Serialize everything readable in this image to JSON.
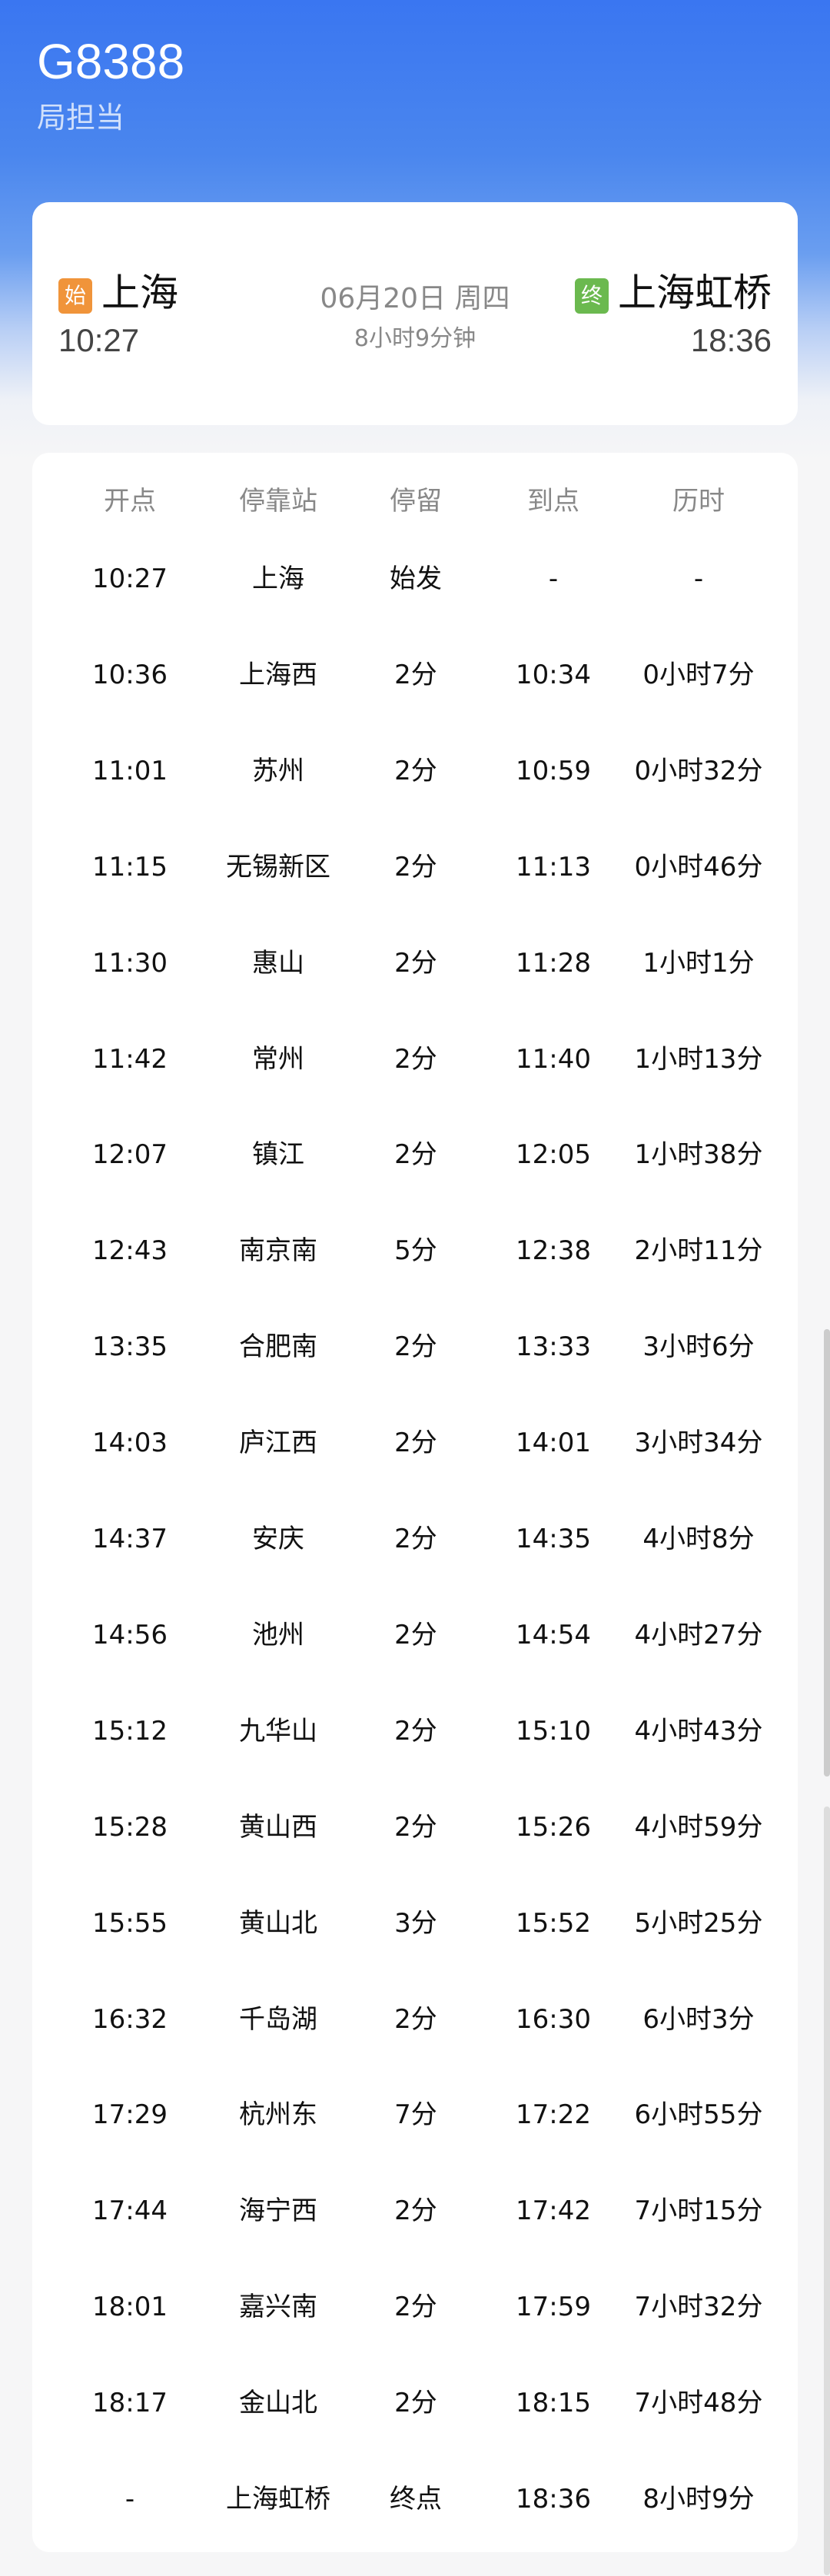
{
  "header": {
    "train_no": "G8388",
    "subtitle": "局担当"
  },
  "summary": {
    "from": {
      "badge": "始",
      "station": "上海",
      "time": "10:27",
      "badge_color": "#f0943a"
    },
    "to": {
      "badge": "终",
      "station": "上海虹桥",
      "time": "18:36",
      "badge_color": "#6bb94f"
    },
    "date": "06月20日  周四",
    "duration": "8小时9分钟"
  },
  "table": {
    "columns": [
      "开点",
      "停靠站",
      "停留",
      "到点",
      "历时"
    ],
    "rows": [
      [
        "10:27",
        "上海",
        "始发",
        "-",
        "-"
      ],
      [
        "10:36",
        "上海西",
        "2分",
        "10:34",
        "0小时7分"
      ],
      [
        "11:01",
        "苏州",
        "2分",
        "10:59",
        "0小时32分"
      ],
      [
        "11:15",
        "无锡新区",
        "2分",
        "11:13",
        "0小时46分"
      ],
      [
        "11:30",
        "惠山",
        "2分",
        "11:28",
        "1小时1分"
      ],
      [
        "11:42",
        "常州",
        "2分",
        "11:40",
        "1小时13分"
      ],
      [
        "12:07",
        "镇江",
        "2分",
        "12:05",
        "1小时38分"
      ],
      [
        "12:43",
        "南京南",
        "5分",
        "12:38",
        "2小时11分"
      ],
      [
        "13:35",
        "合肥南",
        "2分",
        "13:33",
        "3小时6分"
      ],
      [
        "14:03",
        "庐江西",
        "2分",
        "14:01",
        "3小时34分"
      ],
      [
        "14:37",
        "安庆",
        "2分",
        "14:35",
        "4小时8分"
      ],
      [
        "14:56",
        "池州",
        "2分",
        "14:54",
        "4小时27分"
      ],
      [
        "15:12",
        "九华山",
        "2分",
        "15:10",
        "4小时43分"
      ],
      [
        "15:28",
        "黄山西",
        "2分",
        "15:26",
        "4小时59分"
      ],
      [
        "15:55",
        "黄山北",
        "3分",
        "15:52",
        "5小时25分"
      ],
      [
        "16:32",
        "千岛湖",
        "2分",
        "16:30",
        "6小时3分"
      ],
      [
        "17:29",
        "杭州东",
        "7分",
        "17:22",
        "6小时55分"
      ],
      [
        "17:44",
        "海宁西",
        "2分",
        "17:42",
        "7小时15分"
      ],
      [
        "18:01",
        "嘉兴南",
        "2分",
        "17:59",
        "7小时32分"
      ],
      [
        "18:17",
        "金山北",
        "2分",
        "18:15",
        "7小时48分"
      ],
      [
        "-",
        "上海虹桥",
        "终点",
        "18:36",
        "8小时9分"
      ]
    ]
  }
}
